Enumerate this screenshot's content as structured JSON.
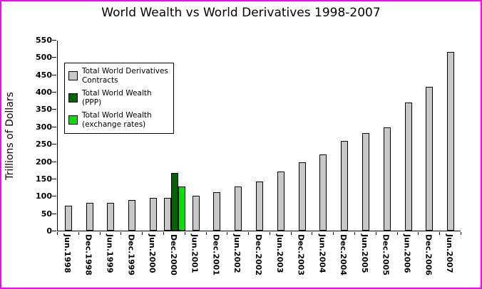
{
  "page": {
    "border_color": "#ff00ff",
    "background": "#ffffff"
  },
  "chart_data": {
    "type": "bar",
    "title": "World Wealth vs World Derivatives 1998-2007",
    "xlabel": "",
    "ylabel": "Trillions of Dollars",
    "ylim": [
      0,
      550
    ],
    "ytick_step": 50,
    "grid": false,
    "legend_position": "upper-left",
    "categories": [
      "Jun.1998",
      "Dec.1998",
      "Jun.1999",
      "Dec.1999",
      "Jun.2000",
      "Dec.2000",
      "Jun.2001",
      "Dec.2001",
      "Jun.2002",
      "Dec.2002",
      "Jun.2003",
      "Dec.2003",
      "Jun.2004",
      "Dec.2004",
      "Jun.2005",
      "Dec.2005",
      "Jun.2006",
      "Dec.2006",
      "Jun.2007"
    ],
    "series": [
      {
        "name": "Total World Derivatives Contracts",
        "legend_lines": "Total World Derivatives\nContracts",
        "color": "#c8c8c8",
        "values": [
          72,
          80,
          81,
          88,
          94,
          95,
          100,
          111,
          128,
          142,
          170,
          197,
          220,
          258,
          281,
          298,
          370,
          415,
          516
        ]
      },
      {
        "name": "Total World Wealth (PPP)",
        "legend_lines": "Total World Wealth\n(PPP)",
        "color": "#006400",
        "values": [
          null,
          null,
          null,
          null,
          null,
          167,
          null,
          null,
          null,
          null,
          null,
          null,
          null,
          null,
          null,
          null,
          null,
          null,
          null
        ]
      },
      {
        "name": "Total World Wealth (exchange rates)",
        "legend_lines": "Total World Wealth\n(exchange rates)",
        "color": "#00e400",
        "values": [
          null,
          null,
          null,
          null,
          null,
          127,
          null,
          null,
          null,
          null,
          null,
          null,
          null,
          null,
          null,
          null,
          null,
          null,
          null
        ]
      }
    ]
  }
}
